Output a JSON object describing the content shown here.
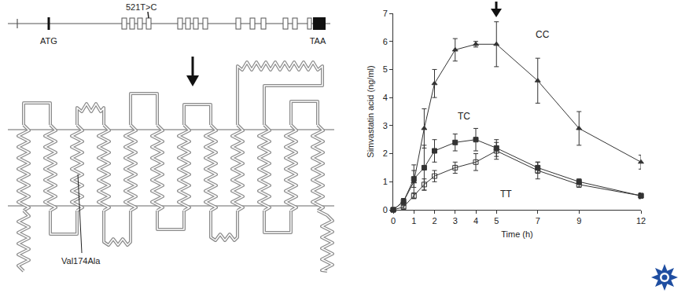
{
  "gene_diagram": {
    "variant": "521T>C",
    "start_codon": "ATG",
    "stop_codon": "TAA"
  },
  "protein_diagram": {
    "variant": "Val174Ala"
  },
  "chart_data": {
    "type": "line",
    "x_label": "Time (h)",
    "y_label": "Simvastatin acid (ng/ml)",
    "x": [
      0,
      0.5,
      1,
      1.5,
      2,
      3,
      4,
      5,
      7,
      9,
      12
    ],
    "xlim": [
      0,
      12
    ],
    "xticks": [
      0,
      1,
      2,
      3,
      4,
      5,
      7,
      9,
      12
    ],
    "ylim": [
      0,
      7
    ],
    "yticks": [
      0,
      1,
      2,
      3,
      4,
      5,
      6,
      7
    ],
    "grid": false,
    "series": [
      {
        "name": "CC",
        "color": "#333333",
        "marker": "triangle-up",
        "values": [
          0,
          0.3,
          1.0,
          2.9,
          4.5,
          5.7,
          5.9,
          5.9,
          4.6,
          2.9,
          1.7
        ],
        "error": [
          0,
          0.1,
          0.6,
          0.7,
          0.5,
          0.4,
          0.1,
          0.8,
          0.8,
          0.6,
          0.25
        ]
      },
      {
        "name": "TC",
        "color": "#333333",
        "marker": "square",
        "values": [
          0,
          0.3,
          1.1,
          1.5,
          2.1,
          2.4,
          2.5,
          2.2,
          1.5,
          1.0,
          0.5
        ],
        "error": [
          0,
          0.1,
          0.3,
          0.8,
          0.4,
          0.3,
          0.4,
          0.3,
          0.2,
          0.1,
          0.1
        ]
      },
      {
        "name": "TT",
        "color": "#333333",
        "marker": "square-open",
        "values": [
          0,
          0.1,
          0.5,
          0.9,
          1.2,
          1.5,
          1.7,
          2.1,
          1.4,
          0.9,
          0.5
        ],
        "error": [
          0,
          0.05,
          0.1,
          0.2,
          0.2,
          0.2,
          0.3,
          0.3,
          0.3,
          0.1,
          0.1
        ]
      }
    ]
  }
}
